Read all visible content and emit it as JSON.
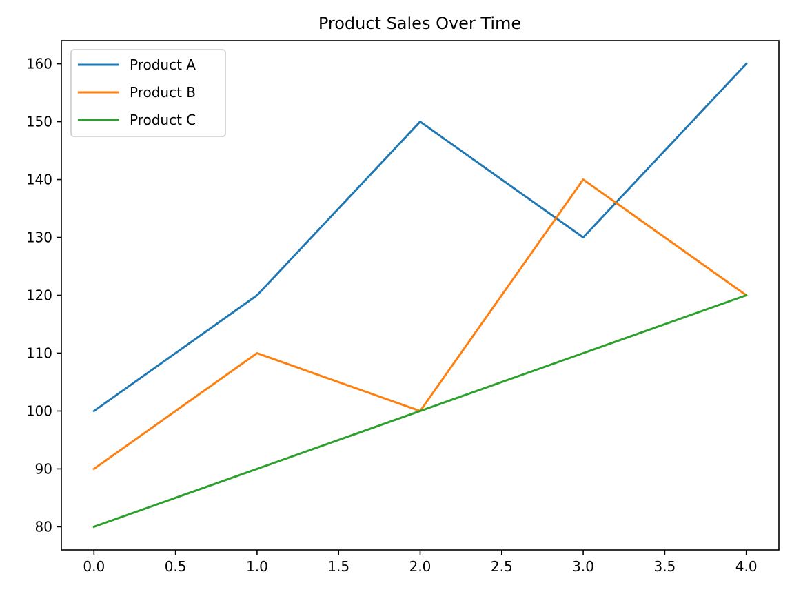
{
  "chart_data": {
    "type": "line",
    "title": "Product Sales Over Time",
    "xlabel": "",
    "ylabel": "",
    "x": [
      0,
      1,
      2,
      3,
      4
    ],
    "series": [
      {
        "name": "Product A",
        "values": [
          100,
          120,
          150,
          130,
          160
        ],
        "color": "#1f77b4"
      },
      {
        "name": "Product B",
        "values": [
          90,
          110,
          100,
          140,
          120
        ],
        "color": "#ff7f0e"
      },
      {
        "name": "Product C",
        "values": [
          80,
          90,
          100,
          110,
          120
        ],
        "color": "#2ca02c"
      }
    ],
    "xlim": [
      -0.2,
      4.2
    ],
    "ylim": [
      76,
      164
    ],
    "x_ticks": [
      "0.0",
      "0.5",
      "1.0",
      "1.5",
      "2.0",
      "2.5",
      "3.0",
      "3.5",
      "4.0"
    ],
    "y_ticks": [
      "80",
      "90",
      "100",
      "110",
      "120",
      "130",
      "140",
      "150",
      "160"
    ],
    "grid": false,
    "legend": "upper-left"
  }
}
